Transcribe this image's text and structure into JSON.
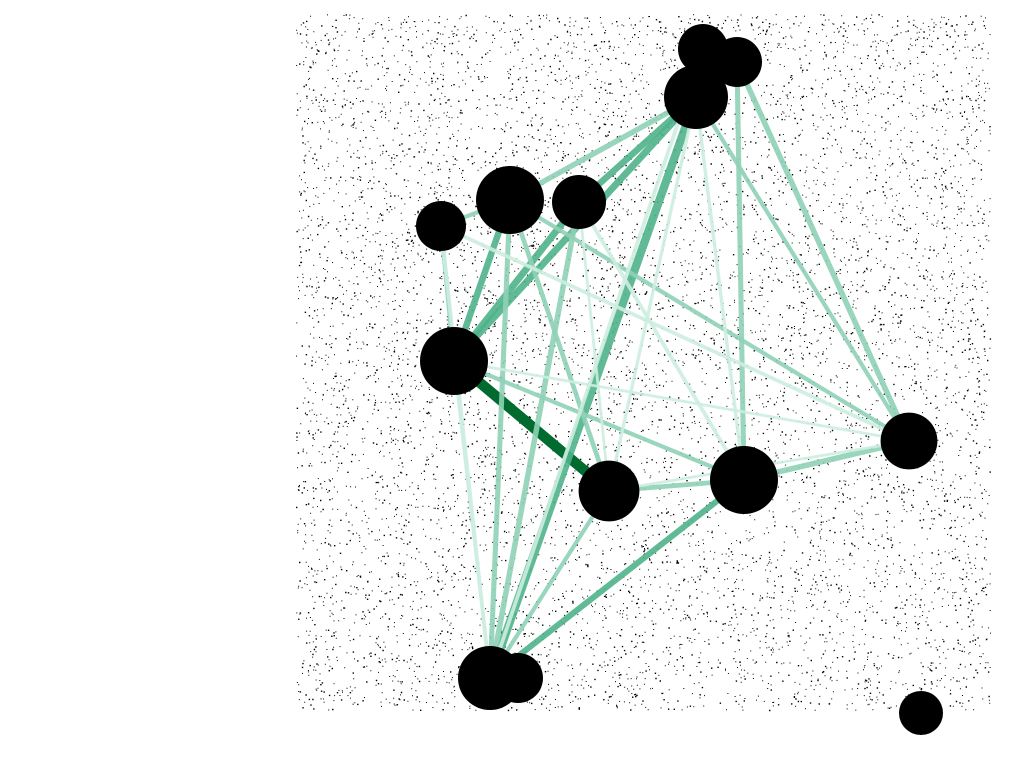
{
  "diagram": {
    "type": "network-graph",
    "background": "speckled-noise",
    "colors": {
      "background": "#ffffff",
      "noise": "#000000",
      "node": "#000000",
      "edge_strong": "#006b2e",
      "edge_medium": "#4fb38b",
      "edge_light": "#8fd2b6",
      "edge_faint": "#cdeee0"
    },
    "nodes": [
      {
        "id": "n1",
        "weight": 0.55
      },
      {
        "id": "n2",
        "weight": 0.55
      },
      {
        "id": "n3",
        "weight": 0.9
      },
      {
        "id": "n4",
        "weight": 1.0
      },
      {
        "id": "n5",
        "weight": 0.65
      },
      {
        "id": "n6",
        "weight": 0.55
      },
      {
        "id": "n7",
        "weight": 1.0
      },
      {
        "id": "n8",
        "weight": 0.82
      },
      {
        "id": "n9",
        "weight": 1.0
      },
      {
        "id": "n10",
        "weight": 0.72
      },
      {
        "id": "n11",
        "weight": 0.9
      },
      {
        "id": "n12",
        "weight": 0.55
      },
      {
        "id": "n13",
        "weight": 0.4
      }
    ],
    "edges": [
      {
        "source": "n7",
        "target": "n8",
        "strength": 1.0
      },
      {
        "source": "n3",
        "target": "n11",
        "strength": 0.75
      },
      {
        "source": "n3",
        "target": "n7",
        "strength": 0.6
      },
      {
        "source": "n5",
        "target": "n7",
        "strength": 0.6
      },
      {
        "source": "n4",
        "target": "n7",
        "strength": 0.55
      },
      {
        "source": "n3",
        "target": "n5",
        "strength": 0.55
      },
      {
        "source": "n3",
        "target": "n4",
        "strength": 0.45
      },
      {
        "source": "n9",
        "target": "n11",
        "strength": 0.5
      },
      {
        "source": "n5",
        "target": "n11",
        "strength": 0.45
      },
      {
        "source": "n4",
        "target": "n11",
        "strength": 0.4
      },
      {
        "source": "n2",
        "target": "n10",
        "strength": 0.45
      },
      {
        "source": "n2",
        "target": "n9",
        "strength": 0.4
      },
      {
        "source": "n9",
        "target": "n10",
        "strength": 0.45
      },
      {
        "source": "n8",
        "target": "n9",
        "strength": 0.35
      },
      {
        "source": "n4",
        "target": "n8",
        "strength": 0.35
      },
      {
        "source": "n6",
        "target": "n7",
        "strength": 0.3
      },
      {
        "source": "n6",
        "target": "n4",
        "strength": 0.3
      },
      {
        "source": "n6",
        "target": "n11",
        "strength": 0.25
      },
      {
        "source": "n4",
        "target": "n10",
        "strength": 0.3
      },
      {
        "source": "n7",
        "target": "n9",
        "strength": 0.3
      },
      {
        "source": "n3",
        "target": "n10",
        "strength": 0.3
      },
      {
        "source": "n8",
        "target": "n11",
        "strength": 0.3
      },
      {
        "source": "n6",
        "target": "n10",
        "strength": 0.25
      },
      {
        "source": "n5",
        "target": "n9",
        "strength": 0.25
      },
      {
        "source": "n1",
        "target": "n11",
        "strength": 0.25
      },
      {
        "source": "n3",
        "target": "n9",
        "strength": 0.22
      },
      {
        "source": "n7",
        "target": "n11",
        "strength": 0.2
      },
      {
        "source": "n12",
        "target": "n11",
        "strength": 0.2
      },
      {
        "source": "n3",
        "target": "n8",
        "strength": 0.2
      },
      {
        "source": "n8",
        "target": "n10",
        "strength": 0.15
      },
      {
        "source": "n5",
        "target": "n8",
        "strength": 0.15
      },
      {
        "source": "n7",
        "target": "n10",
        "strength": 0.15
      }
    ]
  }
}
